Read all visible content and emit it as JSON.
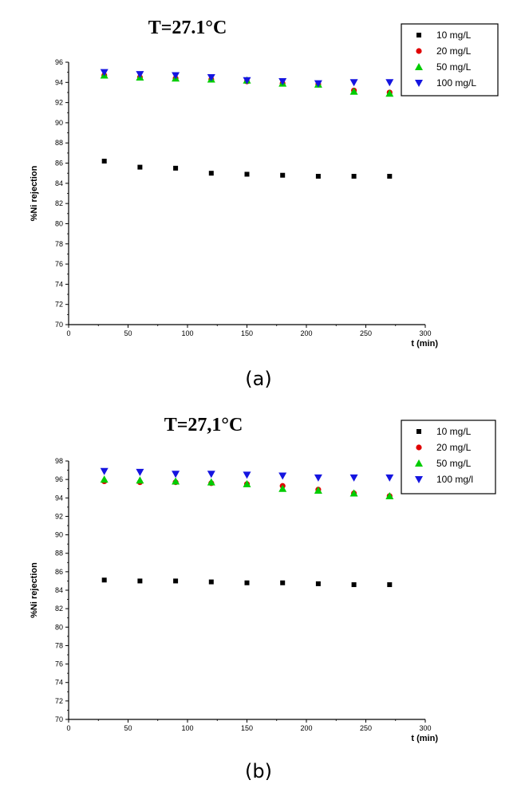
{
  "chart_data": [
    {
      "type": "scatter",
      "title": "T=27.1°C",
      "caption": "(a)",
      "xlabel": "t (min)",
      "ylabel": "%Ni rejection",
      "xlim": [
        0,
        300
      ],
      "ylim": [
        70,
        96
      ],
      "xticks": [
        0,
        50,
        100,
        150,
        200,
        250,
        300
      ],
      "yticks": [
        70,
        72,
        74,
        76,
        78,
        80,
        82,
        84,
        86,
        88,
        90,
        92,
        94,
        96
      ],
      "legend_position": "top-right",
      "x": [
        30,
        60,
        90,
        120,
        150,
        180,
        210,
        240,
        270
      ],
      "series": [
        {
          "name": "10 mg/L",
          "marker": "square",
          "color": "#000000",
          "values": [
            86.2,
            85.6,
            85.5,
            85.0,
            84.9,
            84.8,
            84.7,
            84.7,
            84.7
          ]
        },
        {
          "name": "20 mg/L",
          "marker": "circle",
          "color": "#e00000",
          "values": [
            94.7,
            94.5,
            94.4,
            94.3,
            94.1,
            93.9,
            93.8,
            93.2,
            93.0
          ]
        },
        {
          "name": "50 mg/L",
          "marker": "triangle",
          "color": "#00cc00",
          "values": [
            94.7,
            94.5,
            94.4,
            94.3,
            94.2,
            93.9,
            93.8,
            93.1,
            92.9
          ]
        },
        {
          "name": "100 mg/L",
          "marker": "tri-down",
          "color": "#1515e0",
          "values": [
            95.0,
            94.8,
            94.7,
            94.5,
            94.2,
            94.1,
            93.9,
            94.0,
            94.0
          ]
        }
      ]
    },
    {
      "type": "scatter",
      "title": "T=27,1°C",
      "caption": "(b)",
      "xlabel": "t (min)",
      "ylabel": "%Ni rejection",
      "xlim": [
        0,
        300
      ],
      "ylim": [
        70,
        98
      ],
      "xticks": [
        0,
        50,
        100,
        150,
        200,
        250,
        300
      ],
      "yticks": [
        70,
        72,
        74,
        76,
        78,
        80,
        82,
        84,
        86,
        88,
        90,
        92,
        94,
        96,
        98
      ],
      "legend_position": "top-right",
      "x": [
        30,
        60,
        90,
        120,
        150,
        180,
        210,
        240,
        270
      ],
      "series": [
        {
          "name": "10 mg/L",
          "marker": "square",
          "color": "#000000",
          "values": [
            85.1,
            85.0,
            85.0,
            84.9,
            84.8,
            84.8,
            84.7,
            84.6,
            84.6
          ]
        },
        {
          "name": "20 mg/L",
          "marker": "circle",
          "color": "#e00000",
          "values": [
            95.8,
            95.7,
            95.7,
            95.6,
            95.5,
            95.3,
            94.9,
            94.5,
            94.2
          ]
        },
        {
          "name": "50 mg/L",
          "marker": "triangle",
          "color": "#00cc00",
          "values": [
            96.0,
            95.9,
            95.8,
            95.7,
            95.5,
            95.0,
            94.8,
            94.5,
            94.2
          ]
        },
        {
          "name": "100 mg/l",
          "marker": "tri-down",
          "color": "#1515e0",
          "values": [
            96.9,
            96.8,
            96.6,
            96.6,
            96.5,
            96.4,
            96.2,
            96.2,
            96.2
          ]
        }
      ]
    }
  ]
}
